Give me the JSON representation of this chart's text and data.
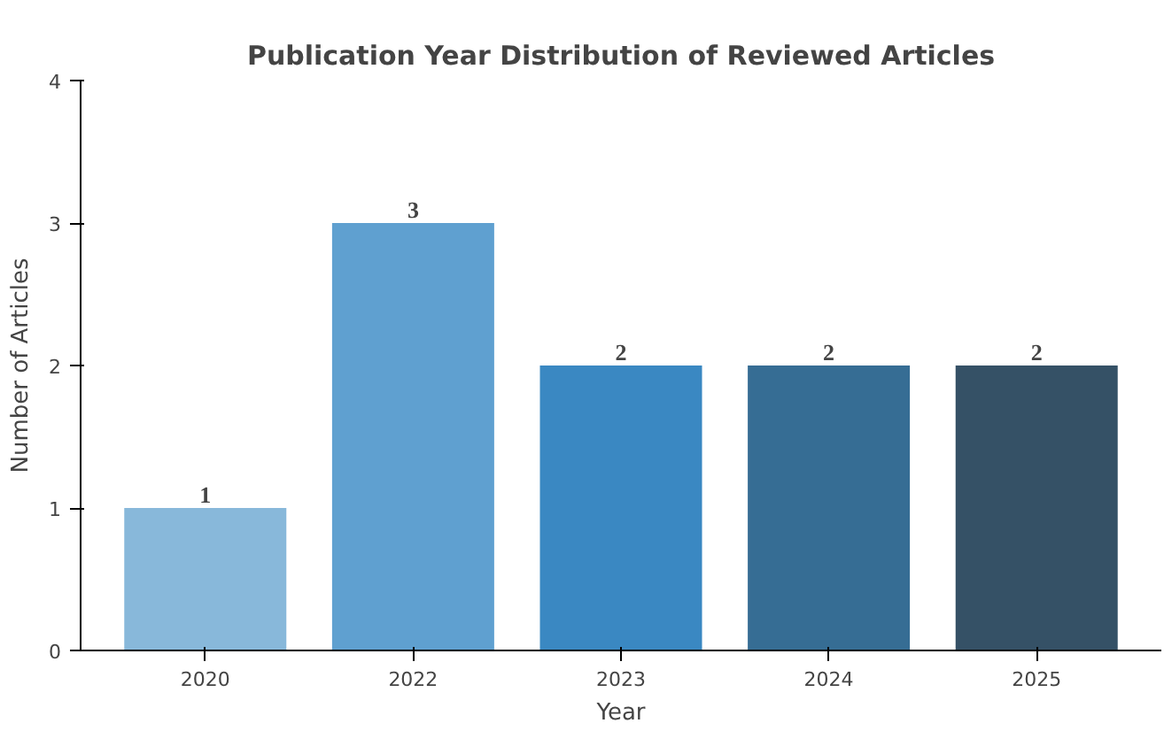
{
  "chart_data": {
    "type": "bar",
    "title": "Publication Year Distribution of Reviewed Articles",
    "xlabel": "Year",
    "ylabel": "Number of Articles",
    "categories": [
      "2020",
      "2022",
      "2023",
      "2024",
      "2025"
    ],
    "values": [
      1,
      3,
      2,
      2,
      2
    ],
    "colors": [
      "#88b8da",
      "#5fa0d0",
      "#3a88c2",
      "#366d94",
      "#355166"
    ],
    "ylim": [
      0,
      4
    ],
    "yticks": [
      0,
      1,
      2,
      3,
      4
    ],
    "grid": false,
    "data_labels": true
  }
}
